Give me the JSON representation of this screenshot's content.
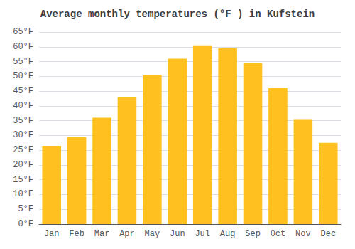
{
  "chart_data": {
    "type": "bar",
    "title": "Average monthly temperatures (°F ) in Kufstein",
    "categories": [
      "Jan",
      "Feb",
      "Mar",
      "Apr",
      "May",
      "Jun",
      "Jul",
      "Aug",
      "Sep",
      "Oct",
      "Nov",
      "Dec"
    ],
    "values": [
      26.5,
      29.5,
      36,
      43,
      50.5,
      56,
      60.5,
      59.5,
      54.5,
      46,
      35.5,
      27.5
    ],
    "color": "#FFC020",
    "ylim": [
      0,
      65
    ],
    "yticks": [
      {
        "value": 0,
        "label": "0°F"
      },
      {
        "value": 5,
        "label": "5°F"
      },
      {
        "value": 10,
        "label": "10°F"
      },
      {
        "value": 15,
        "label": "15°F"
      },
      {
        "value": 20,
        "label": "20°F"
      },
      {
        "value": 25,
        "label": "25°F"
      },
      {
        "value": 30,
        "label": "30°F"
      },
      {
        "value": 35,
        "label": "35°F"
      },
      {
        "value": 40,
        "label": "40°F"
      },
      {
        "value": 45,
        "label": "45°F"
      },
      {
        "value": 50,
        "label": "50°F"
      },
      {
        "value": 55,
        "label": "55°F"
      },
      {
        "value": 60,
        "label": "60°F"
      },
      {
        "value": 65,
        "label": "65°F"
      }
    ],
    "grid": true
  }
}
